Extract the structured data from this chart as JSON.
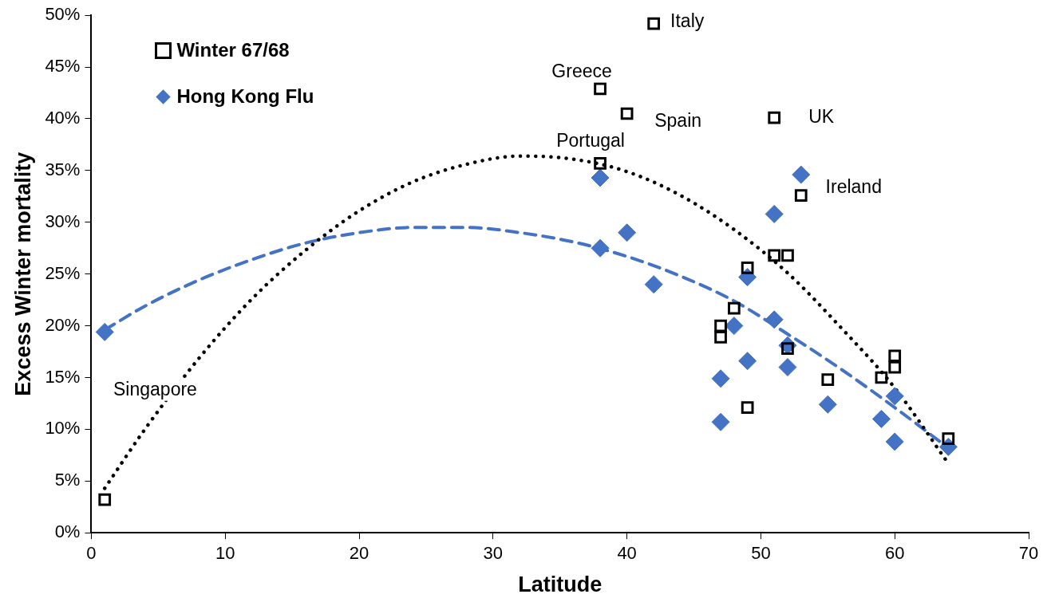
{
  "chart_data": {
    "type": "scatter",
    "xlabel": "Latitude",
    "ylabel": "Excess Winter mortality",
    "xlim": [
      0,
      70
    ],
    "xticks": [
      0,
      10,
      20,
      30,
      40,
      50,
      60,
      70
    ],
    "ylim": [
      0,
      50
    ],
    "yticks": [
      {
        "value": 0,
        "label": "0%"
      },
      {
        "value": 5,
        "label": "5%"
      },
      {
        "value": 10,
        "label": "10%"
      },
      {
        "value": 15,
        "label": "15%"
      },
      {
        "value": 20,
        "label": "20%"
      },
      {
        "value": 25,
        "label": "25%"
      },
      {
        "value": 30,
        "label": "30%"
      },
      {
        "value": 35,
        "label": "35%"
      },
      {
        "value": 40,
        "label": "40%"
      },
      {
        "value": 45,
        "label": "45%"
      },
      {
        "value": 50,
        "label": "50%"
      }
    ],
    "grid": false,
    "legend": "top left",
    "series": [
      {
        "name": "Winter 67/68",
        "marker": "square",
        "color": "#000000",
        "x": [
          1,
          42,
          38,
          40,
          51,
          38,
          53,
          51,
          52,
          49,
          48,
          47,
          47,
          52,
          60,
          60,
          59,
          55,
          49,
          64
        ],
        "values": [
          3.2,
          49.2,
          42.9,
          40.5,
          40.1,
          35.7,
          32.6,
          26.8,
          26.8,
          25.6,
          21.7,
          20.0,
          18.9,
          17.8,
          17.1,
          16.0,
          15.0,
          14.8,
          12.1,
          9.1
        ]
      },
      {
        "name": "Hong Kong Flu",
        "marker": "diamond",
        "color": "#4472c4",
        "x": [
          1,
          38,
          38,
          40,
          42,
          53,
          51,
          49,
          48,
          51,
          52,
          52,
          49,
          47,
          47,
          55,
          59,
          60,
          60,
          64
        ],
        "values": [
          19.4,
          34.3,
          27.5,
          29.0,
          24.0,
          34.6,
          30.8,
          24.7,
          20.0,
          20.6,
          18.1,
          16.0,
          16.6,
          14.9,
          10.7,
          12.4,
          11.0,
          13.2,
          8.8,
          8.3
        ]
      },
      {
        "type": "line",
        "marker": "none",
        "line_style": "dotted",
        "color": "#000000",
        "x": [
          1,
          4,
          8,
          12,
          16,
          20,
          24,
          28,
          32,
          36,
          40,
          44,
          48,
          52,
          56,
          60,
          64
        ],
        "values": [
          4.3,
          10.0,
          16.8,
          22.6,
          27.3,
          31.1,
          33.9,
          35.6,
          36.4,
          36.1,
          34.9,
          32.6,
          29.3,
          25.1,
          19.8,
          14.0,
          6.7
        ]
      },
      {
        "type": "line",
        "marker": "none",
        "line_style": "dashed",
        "color": "#4472c4",
        "x": [
          1,
          4,
          8,
          12,
          16,
          20,
          24,
          28,
          32,
          36,
          40,
          44,
          48,
          52,
          56,
          60,
          64
        ],
        "values": [
          19.6,
          21.9,
          24.4,
          26.4,
          28.0,
          29.0,
          29.5,
          29.5,
          29.0,
          28.1,
          26.7,
          24.8,
          22.4,
          19.2,
          15.8,
          12.1,
          8.2
        ]
      }
    ],
    "annotations": [
      {
        "text": "Italy",
        "x": 42,
        "y": 49.2
      },
      {
        "text": "Greece",
        "x": 38,
        "y": 42.9
      },
      {
        "text": "Spain",
        "x": 40,
        "y": 40.5
      },
      {
        "text": "UK",
        "x": 51,
        "y": 40.1
      },
      {
        "text": "Portugal",
        "x": 38,
        "y": 35.7
      },
      {
        "text": "Ireland",
        "x": 53,
        "y": 32.6
      },
      "Singapore"
    ]
  }
}
